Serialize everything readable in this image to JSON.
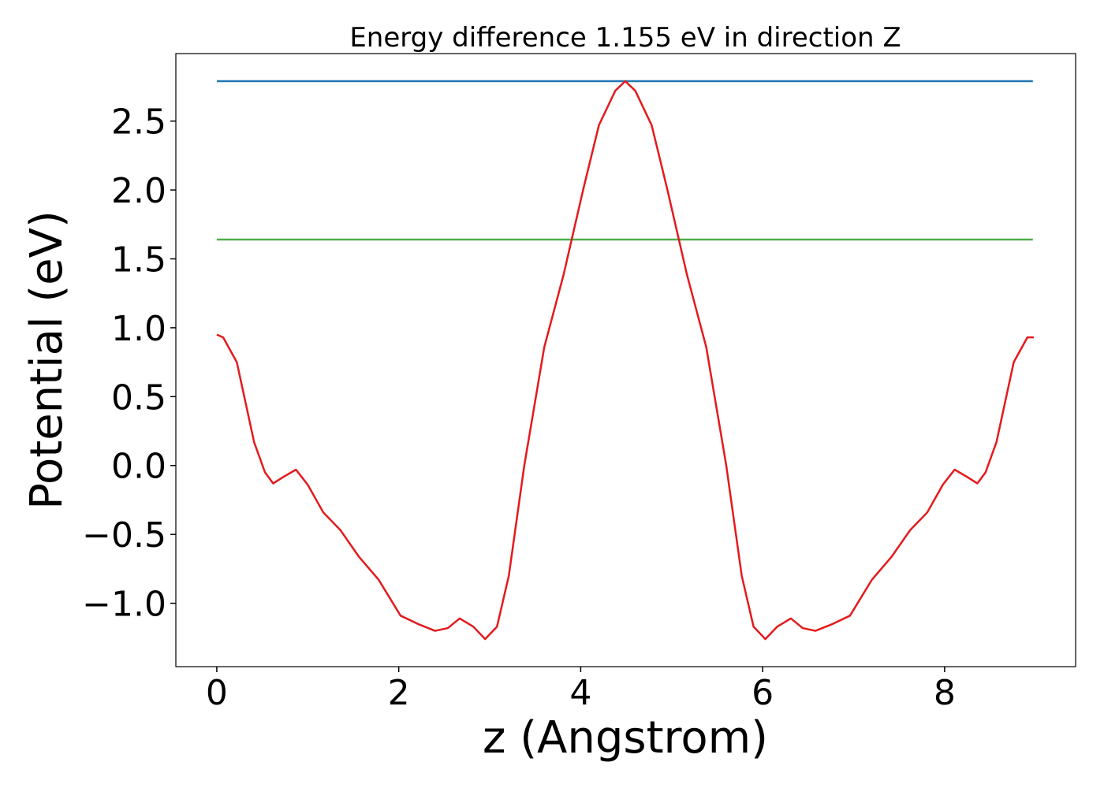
{
  "chart_data": {
    "type": "line",
    "title": "Energy difference 1.155 eV in direction Z",
    "x_label": "z (Angstrom)",
    "y_label": "Potential (eV)",
    "xlim": [
      -0.45,
      9.44
    ],
    "ylim": [
      -1.46,
      2.99
    ],
    "xticks": [
      0,
      2,
      4,
      6,
      8
    ],
    "yticks": [
      {
        "value": -1.0,
        "label": "−1.0"
      },
      {
        "value": -0.5,
        "label": "−0.5"
      },
      {
        "value": 0.0,
        "label": "0.0"
      },
      0.5,
      {
        "value": 1.0,
        "label": "1.0"
      },
      1.5,
      {
        "value": 2.0,
        "label": "2.0"
      },
      2.5
    ],
    "grid": false,
    "series": [
      {
        "color": "#1f77b4",
        "x": [
          0,
          8.97
        ],
        "values": [
          2.79,
          2.79
        ]
      },
      {
        "color": "#4daf4a",
        "x": [
          0,
          8.97
        ],
        "values": [
          1.64,
          1.64
        ]
      },
      {
        "color": "#e41a1c",
        "x": [
          0,
          0.07,
          0.22,
          0.41,
          0.53,
          0.62,
          0.74,
          0.87,
          1.0,
          1.17,
          1.36,
          1.56,
          1.78,
          2.02,
          2.21,
          2.4,
          2.54,
          2.67,
          2.82,
          2.95,
          3.08,
          3.21,
          3.38,
          3.6,
          3.81,
          4.03,
          4.2,
          4.38,
          4.49,
          4.6,
          4.78,
          4.95,
          5.17,
          5.38,
          5.6,
          5.77,
          5.9,
          6.03,
          6.16,
          6.31,
          6.44,
          6.58,
          6.77,
          6.96,
          7.2,
          7.42,
          7.62,
          7.81,
          7.98,
          8.11,
          8.24,
          8.36,
          8.45,
          8.57,
          8.76,
          8.91,
          8.98
        ],
        "values": [
          0.95,
          0.93,
          0.75,
          0.17,
          -0.05,
          -0.13,
          -0.08,
          -0.03,
          -0.14,
          -0.34,
          -0.47,
          -0.66,
          -0.83,
          -1.09,
          -1.15,
          -1.2,
          -1.18,
          -1.11,
          -1.17,
          -1.26,
          -1.17,
          -0.8,
          0.0,
          0.86,
          1.38,
          2.01,
          2.47,
          2.72,
          2.79,
          2.72,
          2.47,
          2.01,
          1.38,
          0.86,
          0.0,
          -0.8,
          -1.17,
          -1.26,
          -1.17,
          -1.11,
          -1.18,
          -1.2,
          -1.15,
          -1.09,
          -0.83,
          -0.66,
          -0.47,
          -0.34,
          -0.14,
          -0.03,
          -0.08,
          -0.13,
          -0.05,
          0.17,
          0.75,
          0.93,
          0.93
        ]
      }
    ]
  }
}
